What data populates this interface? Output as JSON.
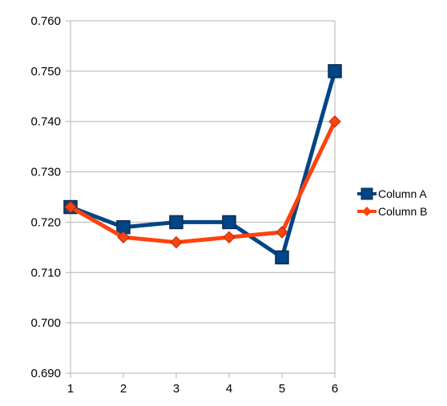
{
  "chart_data": {
    "type": "line",
    "x": [
      1,
      2,
      3,
      4,
      5,
      6
    ],
    "series": [
      {
        "name": "Column A",
        "values": [
          0.723,
          0.719,
          0.72,
          0.72,
          0.713,
          0.75
        ],
        "color": "#004586",
        "marker": "square"
      },
      {
        "name": "Column B",
        "values": [
          0.723,
          0.717,
          0.716,
          0.717,
          0.718,
          0.74
        ],
        "color": "#ff420e",
        "marker": "diamond"
      }
    ],
    "ylim": [
      0.69,
      0.76
    ],
    "yticks": [
      "0.690",
      "0.700",
      "0.710",
      "0.720",
      "0.730",
      "0.740",
      "0.750",
      "0.760"
    ],
    "xticks": [
      "1",
      "2",
      "3",
      "4",
      "5",
      "6"
    ],
    "grid": "horizontal",
    "legend": "right"
  }
}
